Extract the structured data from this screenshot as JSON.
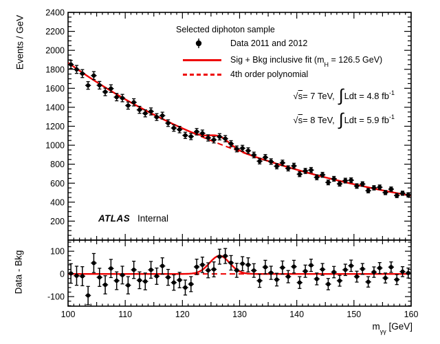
{
  "legend": {
    "title": "Selected diphoton sample",
    "data_label": "Data 2011 and 2012",
    "fit_label_pre": "Sig + Bkg inclusive fit (m",
    "fit_label_sub": "H",
    "fit_label_post": " = 126.5 GeV)",
    "poly_label": "4th order polynomial"
  },
  "lumi": [
    {
      "sqrt_sym": "√",
      "s": "s",
      "cond": " = 7 TeV, ",
      "integral": "∫",
      "ldt": " Ldt = 4.8 fb",
      "exp": "-1"
    },
    {
      "sqrt_sym": "√",
      "s": "s",
      "cond": " = 8 TeV, ",
      "integral": "∫",
      "ldt": " Ldt = 5.9 fb",
      "exp": "-1"
    }
  ],
  "experiment": {
    "name": "ATLAS",
    "status": "Internal"
  },
  "labels": {
    "x_title_m": "m",
    "x_title_sub": "γγ",
    "x_title_unit": " [GeV]"
  },
  "chart_data": {
    "type": "scatter",
    "title": "Selected diphoton sample",
    "x_label": "m_gamma-gamma [GeV]",
    "x_range": [
      100,
      160
    ],
    "x_tick_labels": [
      100,
      110,
      120,
      130,
      140,
      150,
      160
    ],
    "x_medium_step": 5,
    "x_minor_step": 1,
    "main_panel": {
      "y_label": "Events / GeV",
      "y_range": [
        0,
        2400
      ],
      "y_tick_labels": [
        200,
        400,
        600,
        800,
        1000,
        1200,
        1400,
        1600,
        1800,
        2000,
        2200,
        2400
      ],
      "y_major_step": 200,
      "y_minor_step": 50
    },
    "ratio_panel": {
      "y_label": "Data - Bkg",
      "y_range": [
        -142,
        149
      ],
      "y_tick_labels": [
        -100,
        0,
        100
      ],
      "y_major_step": 100,
      "y_minor_step": 20
    },
    "legend_position": "top-center",
    "grid": false,
    "bin_width_gev": 1,
    "bins_x": [
      100.5,
      101.5,
      102.5,
      103.5,
      104.5,
      105.5,
      106.5,
      107.5,
      108.5,
      109.5,
      110.5,
      111.5,
      112.5,
      113.5,
      114.5,
      115.5,
      116.5,
      117.5,
      118.5,
      119.5,
      120.5,
      121.5,
      122.5,
      123.5,
      124.5,
      125.5,
      126.5,
      127.5,
      128.5,
      129.5,
      130.5,
      131.5,
      132.5,
      133.5,
      134.5,
      135.5,
      136.5,
      137.5,
      138.5,
      139.5,
      140.5,
      141.5,
      142.5,
      143.5,
      144.5,
      145.5,
      146.5,
      147.5,
      148.5,
      149.5,
      150.5,
      151.5,
      152.5,
      153.5,
      154.5,
      155.5,
      156.5,
      157.5,
      158.5,
      159.5
    ],
    "data": [
      1851,
      1799,
      1755,
      1630,
      1734,
      1632,
      1562,
      1597,
      1507,
      1497,
      1418,
      1452,
      1373,
      1336,
      1356,
      1297,
      1312,
      1233,
      1181,
      1165,
      1104,
      1092,
      1142,
      1126,
      1077,
      1057,
      1089,
      1069,
      1016,
      961,
      968,
      942,
      897,
      832,
      872,
      828,
      779,
      814,
      756,
      782,
      695,
      729,
      738,
      662,
      688,
      608,
      646,
      593,
      627,
      631,
      570,
      591,
      521,
      551,
      557,
      501,
      537,
      470,
      494,
      477
    ],
    "bkg_fit": [
      1849,
      1807,
      1765,
      1725,
      1686,
      1647,
      1610,
      1573,
      1537,
      1502,
      1468,
      1434,
      1401,
      1369,
      1338,
      1307,
      1277,
      1248,
      1219,
      1192,
      1164,
      1137,
      1111,
      1086,
      1061,
      1037,
      1013,
      990,
      967,
      945,
      923,
      902,
      882,
      862,
      842,
      823,
      804,
      786,
      768,
      750,
      733,
      717,
      700,
      684,
      668,
      653,
      638,
      623,
      609,
      595,
      582,
      569,
      556,
      543,
      531,
      519,
      507,
      495,
      484,
      473
    ],
    "bkg_model": {
      "value_at_100": 1870,
      "half_life_gev": 30
    },
    "signal_model": {
      "mass": 126.5,
      "sigma": 1.75,
      "amplitude": 80
    },
    "ratio_dashed_zero_span": [
      122.0,
      131.5
    ],
    "fit_color": "#ee0000",
    "data_color": "#000000",
    "frame_color": "#000000"
  }
}
